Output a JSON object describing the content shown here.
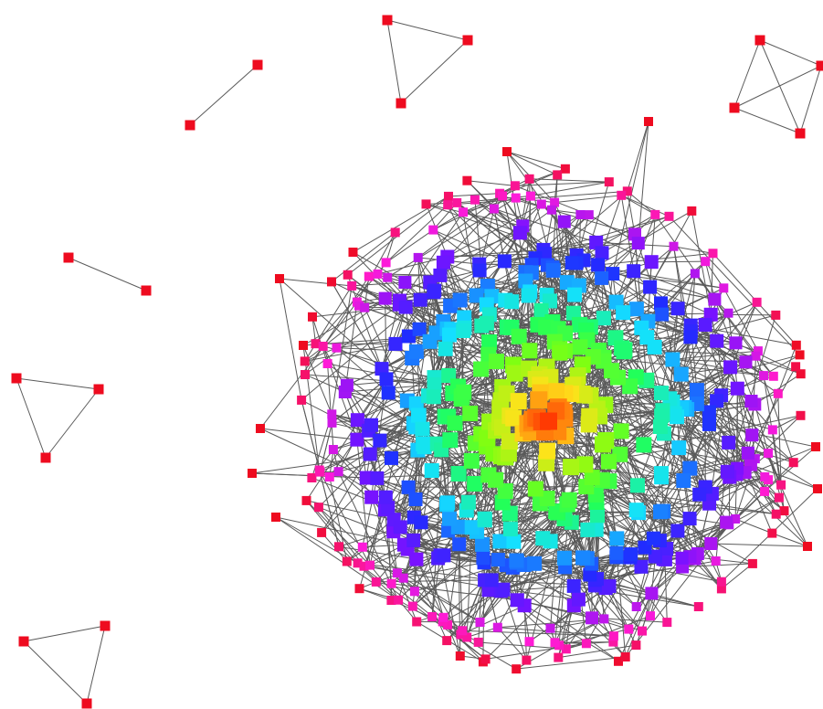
{
  "graph": {
    "layout": "force-directed",
    "node_shape": "square",
    "edge_color": "#5a5a5a",
    "background": "#ffffff",
    "components": [
      {
        "name": "edge-pair-top-left",
        "node_count": 2,
        "edge_count": 1,
        "color": "#ee0b1f"
      },
      {
        "name": "triangle-top-center",
        "node_count": 3,
        "edge_count": 3,
        "color": "#ee0b1f"
      },
      {
        "name": "k4-top-right",
        "node_count": 4,
        "edge_count": 6,
        "color": "#ee0b1f"
      },
      {
        "name": "edge-pair-left",
        "node_count": 2,
        "edge_count": 1,
        "color": "#ee0b1f"
      },
      {
        "name": "triangle-left",
        "node_count": 3,
        "edge_count": 3,
        "color": "#ee0b1f"
      },
      {
        "name": "triangle-bottom-left",
        "node_count": 3,
        "edge_count": 3,
        "color": "#ee0b1f"
      },
      {
        "name": "giant-component",
        "node_count": 560,
        "edge_count": 3000,
        "color_scale": "radial"
      }
    ],
    "color_scale": [
      "#ee0b1f",
      "#ff1bd8",
      "#7a12ff",
      "#1f2cff",
      "#14e0ff",
      "#21ff5a",
      "#7dff12",
      "#ffe21a",
      "#ff2a00"
    ]
  }
}
